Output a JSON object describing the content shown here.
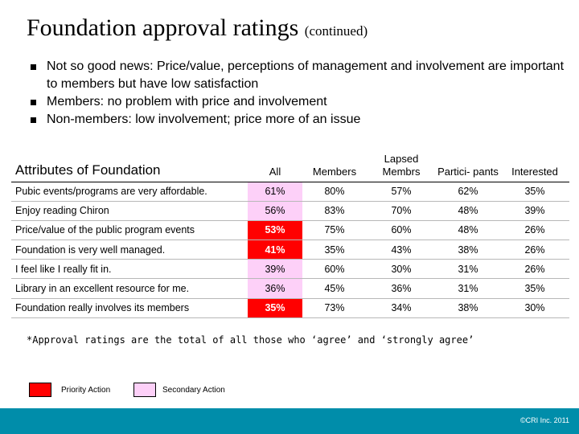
{
  "title": {
    "main": "Foundation approval ratings",
    "sub": "(continued)"
  },
  "bullets": [
    "Not so good news: Price/value, perceptions of management and involvement are important to members but have low satisfaction",
    "Members: no problem with price and involvement",
    "Non-members: low involvement; price more of an issue"
  ],
  "table": {
    "header": {
      "attr": "Attributes of Foundation",
      "all": "All",
      "members": "Members",
      "lapsed": "Lapsed Membrs",
      "participants": "Partici- pants",
      "interested": "Interested"
    },
    "rows": [
      {
        "label": "Pubic events/programs are very affordable.",
        "all": "61%",
        "members": "80%",
        "lapsed": "57%",
        "participants": "62%",
        "interested": "35%",
        "all_highlight": "secondary"
      },
      {
        "label": "Enjoy reading Chiron",
        "all": "56%",
        "members": "83%",
        "lapsed": "70%",
        "participants": "48%",
        "interested": "39%",
        "all_highlight": "secondary"
      },
      {
        "label": "Price/value of the public program events",
        "all": "53%",
        "members": "75%",
        "lapsed": "60%",
        "participants": "48%",
        "interested": "26%",
        "all_highlight": "priority"
      },
      {
        "label": "Foundation is very well managed.",
        "all": "41%",
        "members": "35%",
        "lapsed": "43%",
        "participants": "38%",
        "interested": "26%",
        "all_highlight": "priority"
      },
      {
        "label": "I feel like I really fit in.",
        "all": "39%",
        "members": "60%",
        "lapsed": "30%",
        "participants": "31%",
        "interested": "26%",
        "all_highlight": "secondary"
      },
      {
        "label": "Library in an excellent resource for me.",
        "all": "36%",
        "members": "45%",
        "lapsed": "36%",
        "participants": "31%",
        "interested": "35%",
        "all_highlight": "secondary"
      },
      {
        "label": "Foundation really involves its members",
        "all": "35%",
        "members": "73%",
        "lapsed": "34%",
        "participants": "38%",
        "interested": "30%",
        "all_highlight": "priority"
      }
    ]
  },
  "footnote": "*Approval ratings are the total of all those who ‘agree’ and ‘strongly agree’",
  "legend": {
    "priority": "Priority Action",
    "secondary": "Secondary Action"
  },
  "colors": {
    "priority": "#ff0000",
    "secondary": "#fdd0f8",
    "footer": "#008daa"
  },
  "footer": {
    "copyright": "©CRI Inc. 2011"
  }
}
